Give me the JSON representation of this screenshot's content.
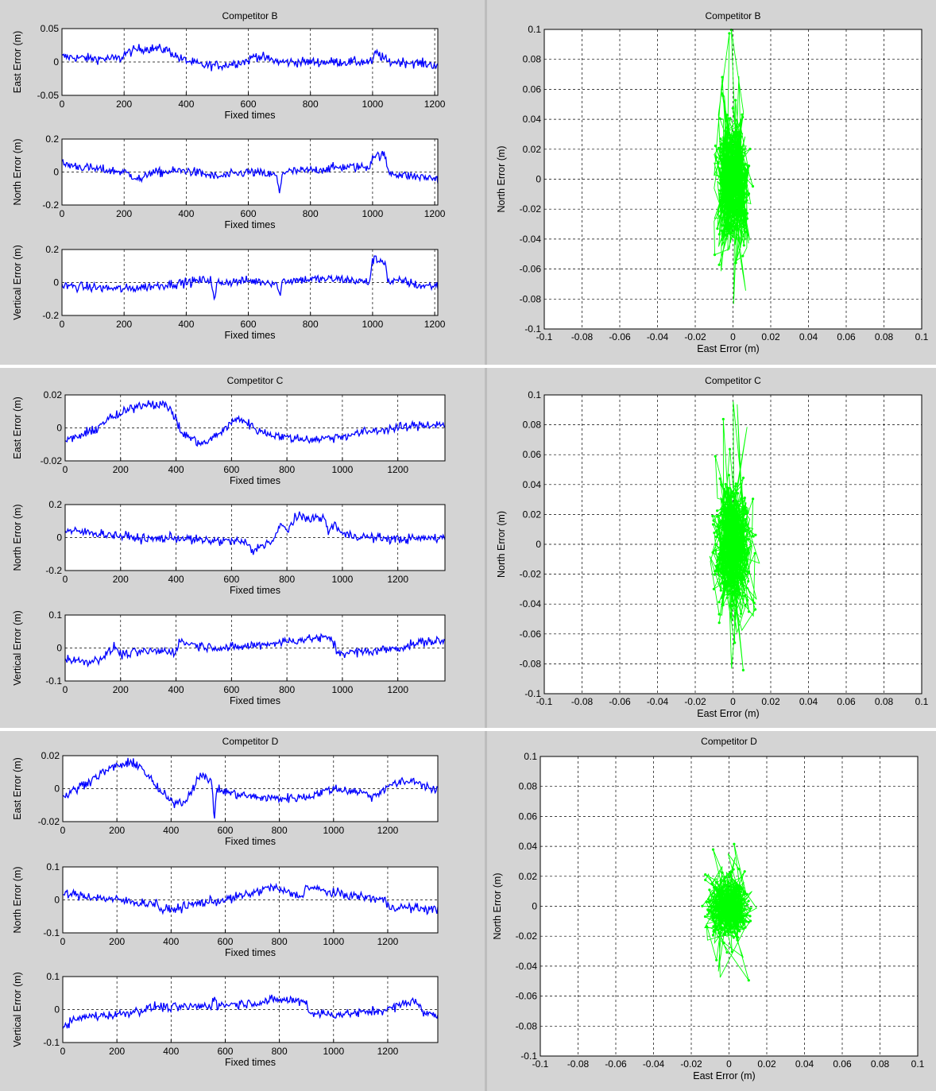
{
  "colors": {
    "background": "#d4d4d4",
    "panel_bg": "#ffffff",
    "timeseries_line": "#0000ff",
    "scatter_line": "#00ff00",
    "divider": "#ffffff"
  },
  "panels": [
    {
      "title": "Competitor B",
      "timeseries": [
        {
          "id": "east",
          "ylabel": "East   Error (m)",
          "ylim": [
            -0.05,
            0.05
          ],
          "yticks": [
            "0.05",
            "0",
            "-0.05"
          ],
          "xlim": [
            0,
            1210
          ],
          "xticks": [
            "0",
            "200",
            "400",
            "600",
            "800",
            "1000",
            "1200"
          ],
          "xlabel": "Fixed times"
        },
        {
          "id": "north",
          "ylabel": "North   Error (m)",
          "ylim": [
            -0.2,
            0.2
          ],
          "yticks": [
            "0.2",
            "0",
            "-0.2"
          ],
          "xlim": [
            0,
            1210
          ],
          "xticks": [
            "0",
            "200",
            "400",
            "600",
            "800",
            "1000",
            "1200"
          ],
          "xlabel": "Fixed times"
        },
        {
          "id": "vertical",
          "ylabel": "Vertical Error (m)",
          "ylim": [
            -0.2,
            0.2
          ],
          "yticks": [
            "0.2",
            "0",
            "-0.2"
          ],
          "xlim": [
            0,
            1210
          ],
          "xticks": [
            "0",
            "200",
            "400",
            "600",
            "800",
            "1000",
            "1200"
          ],
          "xlabel": "Fixed times"
        }
      ],
      "scatter": {
        "xlabel": "East      Error (m)",
        "ylabel": "North   Error (m)",
        "xlim": [
          -0.1,
          0.1
        ],
        "ylim": [
          -0.1,
          0.1
        ],
        "xticks": [
          "-0.1",
          "-0.08",
          "-0.06",
          "-0.04",
          "-0.02",
          "0",
          "0.02",
          "0.04",
          "0.06",
          "0.08",
          "0.1"
        ],
        "yticks": [
          "0.1",
          "0.08",
          "0.06",
          "0.04",
          "0.02",
          "0",
          "-0.02",
          "-0.04",
          "-0.06",
          "-0.08",
          "-0.1"
        ]
      }
    },
    {
      "title": "Competitor C",
      "timeseries": [
        {
          "id": "east",
          "ylabel": "East   Error (m)",
          "ylim": [
            -0.02,
            0.02
          ],
          "yticks": [
            "0.02",
            "0",
            "-0.02"
          ],
          "xlim": [
            0,
            1370
          ],
          "xticks": [
            "0",
            "200",
            "400",
            "600",
            "800",
            "1000",
            "1200"
          ],
          "xlabel": "Fixed times"
        },
        {
          "id": "north",
          "ylabel": "North   Error (m)",
          "ylim": [
            -0.2,
            0.2
          ],
          "yticks": [
            "0.2",
            "0",
            "-0.2"
          ],
          "xlim": [
            0,
            1370
          ],
          "xticks": [
            "0",
            "200",
            "400",
            "600",
            "800",
            "1000",
            "1200"
          ],
          "xlabel": "Fixed times"
        },
        {
          "id": "vertical",
          "ylabel": "Vertical Error (m)",
          "ylim": [
            -0.1,
            0.1
          ],
          "yticks": [
            "0.1",
            "0",
            "-0.1"
          ],
          "xlim": [
            0,
            1370
          ],
          "xticks": [
            "0",
            "200",
            "400",
            "600",
            "800",
            "1000",
            "1200"
          ],
          "xlabel": "Fixed times"
        }
      ],
      "scatter": {
        "xlabel": "East      Error (m)",
        "ylabel": "North   Error (m)",
        "xlim": [
          -0.1,
          0.1
        ],
        "ylim": [
          -0.1,
          0.1
        ],
        "xticks": [
          "-0.1",
          "-0.08",
          "-0.06",
          "-0.04",
          "-0.02",
          "0",
          "0.02",
          "0.04",
          "0.06",
          "0.08",
          "0.1"
        ],
        "yticks": [
          "0.1",
          "0.08",
          "0.06",
          "0.04",
          "0.02",
          "0",
          "-0.02",
          "-0.04",
          "-0.06",
          "-0.08",
          "-0.1"
        ]
      }
    },
    {
      "title": "Competitor D",
      "timeseries": [
        {
          "id": "east",
          "ylabel": "East   Error (m)",
          "ylim": [
            -0.02,
            0.02
          ],
          "yticks": [
            "0.02",
            "0",
            "-0.02"
          ],
          "xlim": [
            0,
            1385
          ],
          "xticks": [
            "0",
            "200",
            "400",
            "600",
            "800",
            "1000",
            "1200"
          ],
          "xlabel": "Fixed times"
        },
        {
          "id": "north",
          "ylabel": "North   Error (m)",
          "ylim": [
            -0.1,
            0.1
          ],
          "yticks": [
            "0.1",
            "0",
            "-0.1"
          ],
          "xlim": [
            0,
            1385
          ],
          "xticks": [
            "0",
            "200",
            "400",
            "600",
            "800",
            "1000",
            "1200"
          ],
          "xlabel": "Fixed times"
        },
        {
          "id": "vertical",
          "ylabel": "Vertical Error (m)",
          "ylim": [
            -0.1,
            0.1
          ],
          "yticks": [
            "0.1",
            "0",
            "-0.1"
          ],
          "xlim": [
            0,
            1385
          ],
          "xticks": [
            "0",
            "200",
            "400",
            "600",
            "800",
            "1000",
            "1200"
          ],
          "xlabel": "Fixed times"
        }
      ],
      "scatter": {
        "xlabel": "East      Error (m)",
        "ylabel": "North   Error (m)",
        "xlim": [
          -0.1,
          0.1
        ],
        "ylim": [
          -0.1,
          0.1
        ],
        "xticks": [
          "-0.1",
          "-0.08",
          "-0.06",
          "-0.04",
          "-0.02",
          "0",
          "0.02",
          "0.04",
          "0.06",
          "0.08",
          "0.1"
        ],
        "yticks": [
          "0.1",
          "0.08",
          "0.06",
          "0.04",
          "0.02",
          "0",
          "-0.02",
          "-0.04",
          "-0.06",
          "-0.08",
          "-0.1"
        ]
      }
    }
  ],
  "chart_data": [
    {
      "type": "line",
      "title": "Competitor B",
      "ylabel": "East   Error (m)",
      "xlabel": "Fixed times",
      "xlim": [
        0,
        1210
      ],
      "ylim": [
        -0.05,
        0.05
      ],
      "grid": true,
      "series": [
        {
          "x": [
            0,
            100,
            190,
            200,
            250,
            300,
            340,
            380,
            450,
            520,
            600,
            620,
            700,
            800,
            900,
            1000,
            1010,
            1050,
            1100,
            1150,
            1210
          ],
          "values": [
            0.008,
            0.005,
            0.005,
            0.012,
            0.02,
            0.02,
            0.018,
            0.005,
            -0.005,
            -0.005,
            0.002,
            0.01,
            0.0,
            0.0,
            0.0,
            0.0,
            0.015,
            0.0,
            0.0,
            -0.002,
            -0.005
          ]
        }
      ]
    },
    {
      "type": "line",
      "title": "Competitor B",
      "ylabel": "North   Error (m)",
      "xlabel": "Fixed times",
      "xlim": [
        0,
        1210
      ],
      "ylim": [
        -0.2,
        0.2
      ],
      "grid": true,
      "series": [
        {
          "x": [
            0,
            100,
            200,
            260,
            280,
            300,
            400,
            500,
            600,
            690,
            700,
            710,
            800,
            900,
            990,
            1000,
            1040,
            1050,
            1100,
            1150,
            1210
          ],
          "values": [
            0.05,
            0.02,
            0.0,
            -0.05,
            0.0,
            -0.005,
            0.01,
            -0.03,
            0.0,
            -0.02,
            -0.13,
            0.0,
            0.01,
            0.03,
            0.03,
            0.1,
            0.1,
            0.0,
            -0.02,
            -0.03,
            -0.04
          ]
        }
      ]
    },
    {
      "type": "line",
      "title": "Competitor B",
      "ylabel": "Vertical Error (m)",
      "xlabel": "Fixed times",
      "xlim": [
        0,
        1210
      ],
      "ylim": [
        -0.2,
        0.2
      ],
      "grid": true,
      "series": [
        {
          "x": [
            0,
            100,
            200,
            300,
            400,
            480,
            490,
            500,
            600,
            690,
            700,
            710,
            800,
            900,
            990,
            1000,
            1040,
            1050,
            1100,
            1150,
            1210
          ],
          "values": [
            -0.02,
            -0.03,
            -0.04,
            -0.02,
            0.0,
            0.02,
            -0.12,
            0.0,
            0.01,
            0.0,
            -0.08,
            0.01,
            0.02,
            0.02,
            0.0,
            0.14,
            0.13,
            0.0,
            0.01,
            -0.02,
            -0.02
          ]
        }
      ]
    },
    {
      "type": "scatter",
      "title": "Competitor B",
      "xlabel": "East      Error (m)",
      "ylabel": "North   Error (m)",
      "xlim": [
        -0.1,
        0.1
      ],
      "ylim": [
        -0.1,
        0.1
      ],
      "grid": true,
      "series": [
        {
          "cluster_center": [
            0.0,
            0.0
          ],
          "x_range": [
            -0.01,
            0.022
          ],
          "y_range": [
            -0.1,
            0.1
          ]
        }
      ]
    },
    {
      "type": "line",
      "title": "Competitor C",
      "ylabel": "East   Error (m)",
      "xlabel": "Fixed times",
      "xlim": [
        0,
        1370
      ],
      "ylim": [
        -0.02,
        0.02
      ],
      "grid": true,
      "series": [
        {
          "x": [
            0,
            50,
            100,
            150,
            200,
            250,
            300,
            350,
            380,
            420,
            450,
            500,
            550,
            600,
            630,
            700,
            800,
            900,
            1000,
            1100,
            1200,
            1300,
            1370
          ],
          "values": [
            -0.008,
            -0.005,
            -0.002,
            0.005,
            0.008,
            0.013,
            0.015,
            0.014,
            0.012,
            -0.003,
            -0.006,
            -0.01,
            -0.004,
            0.003,
            0.006,
            -0.002,
            -0.006,
            -0.007,
            -0.005,
            -0.002,
            0.0,
            0.002,
            0.002
          ]
        }
      ]
    },
    {
      "type": "line",
      "title": "Competitor C",
      "ylabel": "North   Error (m)",
      "xlabel": "Fixed times",
      "xlim": [
        0,
        1370
      ],
      "ylim": [
        -0.2,
        0.2
      ],
      "grid": true,
      "series": [
        {
          "x": [
            0,
            100,
            200,
            300,
            400,
            500,
            600,
            650,
            680,
            700,
            750,
            780,
            800,
            830,
            900,
            940,
            950,
            970,
            1000,
            1100,
            1200,
            1300,
            1370
          ],
          "values": [
            0.04,
            0.03,
            0.01,
            -0.01,
            0.0,
            -0.02,
            -0.02,
            -0.03,
            -0.09,
            -0.05,
            -0.02,
            0.08,
            0.04,
            0.12,
            0.12,
            0.11,
            0.02,
            0.09,
            0.02,
            0.0,
            -0.01,
            -0.005,
            0.0
          ]
        }
      ]
    },
    {
      "type": "line",
      "title": "Competitor C",
      "ylabel": "Vertical Error (m)",
      "xlabel": "Fixed times",
      "xlim": [
        0,
        1370
      ],
      "ylim": [
        -0.1,
        0.1
      ],
      "grid": true,
      "series": [
        {
          "x": [
            0,
            50,
            100,
            150,
            180,
            200,
            300,
            400,
            410,
            500,
            600,
            700,
            800,
            900,
            960,
            980,
            1000,
            1100,
            1200,
            1300,
            1370
          ],
          "values": [
            -0.03,
            -0.04,
            -0.04,
            -0.02,
            0.005,
            -0.02,
            -0.01,
            -0.01,
            0.02,
            0.005,
            0.0,
            0.01,
            0.02,
            0.03,
            0.03,
            -0.01,
            -0.015,
            -0.01,
            0.0,
            0.02,
            0.02
          ]
        }
      ]
    },
    {
      "type": "scatter",
      "title": "Competitor C",
      "xlabel": "East      Error (m)",
      "ylabel": "North   Error (m)",
      "xlim": [
        -0.1,
        0.1
      ],
      "ylim": [
        -0.1,
        0.1
      ],
      "grid": true,
      "series": [
        {
          "cluster_center": [
            0.0,
            0.0
          ],
          "x_range": [
            -0.015,
            0.02
          ],
          "y_range": [
            -0.1,
            0.1
          ]
        }
      ]
    },
    {
      "type": "line",
      "title": "Competitor D",
      "ylabel": "East   Error (m)",
      "xlabel": "Fixed times",
      "xlim": [
        0,
        1385
      ],
      "ylim": [
        -0.02,
        0.02
      ],
      "grid": true,
      "series": [
        {
          "x": [
            0,
            50,
            100,
            150,
            200,
            250,
            280,
            350,
            400,
            450,
            480,
            500,
            550,
            560,
            570,
            600,
            700,
            800,
            900,
            1000,
            1100,
            1150,
            1200,
            1300,
            1385
          ],
          "values": [
            -0.005,
            0.0,
            0.005,
            0.01,
            0.014,
            0.015,
            0.015,
            0.0,
            -0.008,
            -0.008,
            0.0,
            0.008,
            0.005,
            -0.018,
            0.0,
            -0.002,
            -0.005,
            -0.006,
            -0.005,
            0.0,
            -0.002,
            -0.005,
            0.002,
            0.005,
            -0.002
          ]
        }
      ]
    },
    {
      "type": "line",
      "title": "Competitor D",
      "ylabel": "North   Error (m)",
      "xlabel": "Fixed times",
      "xlim": [
        0,
        1385
      ],
      "ylim": [
        -0.1,
        0.1
      ],
      "grid": true,
      "series": [
        {
          "x": [
            0,
            100,
            200,
            300,
            350,
            360,
            400,
            500,
            600,
            700,
            770,
            800,
            880,
            900,
            1000,
            1100,
            1190,
            1200,
            1300,
            1385
          ],
          "values": [
            0.02,
            0.01,
            0.0,
            -0.01,
            -0.01,
            -0.03,
            -0.03,
            -0.01,
            0.0,
            0.02,
            0.04,
            0.03,
            0.01,
            0.04,
            0.02,
            0.01,
            0.0,
            -0.02,
            -0.025,
            -0.03
          ]
        }
      ]
    },
    {
      "type": "line",
      "title": "Competitor D",
      "ylabel": "Vertical Error (m)",
      "xlabel": "Fixed times",
      "xlim": [
        0,
        1385
      ],
      "ylim": [
        -0.1,
        0.1
      ],
      "grid": true,
      "series": [
        {
          "x": [
            0,
            50,
            100,
            200,
            300,
            350,
            400,
            500,
            550,
            560,
            570,
            600,
            700,
            800,
            900,
            910,
            1000,
            1100,
            1200,
            1300,
            1330,
            1385
          ],
          "values": [
            -0.05,
            -0.03,
            -0.02,
            -0.015,
            0.0,
            0.01,
            0.005,
            0.01,
            0.01,
            0.05,
            0.01,
            0.015,
            0.02,
            0.03,
            0.025,
            -0.01,
            -0.015,
            -0.01,
            0.0,
            0.03,
            -0.01,
            -0.015
          ]
        }
      ]
    },
    {
      "type": "scatter",
      "title": "Competitor D",
      "xlabel": "East      Error (m)",
      "ylabel": "North   Error (m)",
      "xlim": [
        -0.1,
        0.1
      ],
      "ylim": [
        -0.1,
        0.1
      ],
      "grid": true,
      "series": [
        {
          "cluster_center": [
            0.0,
            0.0
          ],
          "x_range": [
            -0.02,
            0.02
          ],
          "y_range": [
            -0.05,
            0.043
          ]
        }
      ]
    }
  ]
}
